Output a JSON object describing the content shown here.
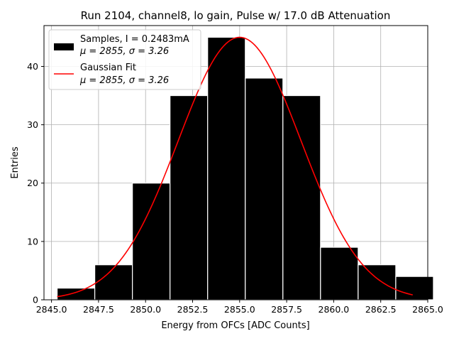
{
  "chart_data": {
    "type": "bar",
    "title": "Run 2104, channel8, lo gain, Pulse w/ 17.0 dB Attenuation",
    "xlabel": "Energy from OFCs [ADC Counts]",
    "ylabel": "Entries",
    "xlim": [
      2844.6,
      2865.0
    ],
    "ylim": [
      0,
      47
    ],
    "x_ticks": [
      2845.0,
      2847.5,
      2850.0,
      2852.5,
      2855.0,
      2857.5,
      2860.0,
      2862.5,
      2865.0
    ],
    "x_tick_labels": [
      "2845.0",
      "2847.5",
      "2850.0",
      "2852.5",
      "2855.0",
      "2857.5",
      "2860.0",
      "2862.5",
      "2865.0"
    ],
    "y_ticks": [
      0,
      10,
      20,
      30,
      40
    ],
    "y_tick_labels": [
      "0",
      "10",
      "20",
      "30",
      "40"
    ],
    "grid": true,
    "legend_position": "top-left",
    "histogram": {
      "name": "Samples, I = 0.2483mA",
      "stats": "μ = 2855, σ = 3.26",
      "color": "#000000",
      "edge_color": "#ffffff",
      "bin_edges": [
        2845.3,
        2847.3,
        2849.3,
        2851.3,
        2853.3,
        2855.3,
        2857.3,
        2859.3,
        2861.3,
        2863.3,
        2865.3
      ],
      "counts": [
        2,
        6,
        20,
        35,
        45,
        38,
        35,
        9,
        6,
        4
      ]
    },
    "fit": {
      "name": "Gaussian Fit",
      "stats": "μ = 2855, σ = 3.26",
      "color": "#ff0000",
      "mean": 2855.0,
      "sigma": 3.26,
      "amplitude": 45.0,
      "x_range": [
        2845.3,
        2864.2
      ]
    }
  }
}
